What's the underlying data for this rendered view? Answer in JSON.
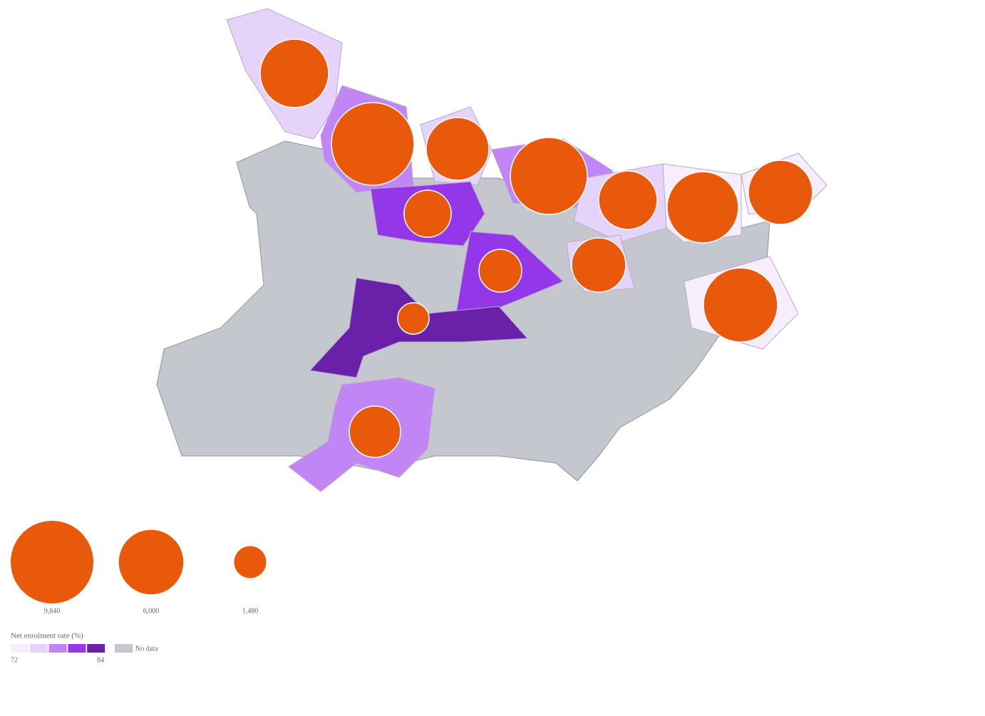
{
  "map_data": {
    "bubble_color": "#e8590c",
    "bubbles": [
      6740,
      9840,
      5660,
      8530,
      4920,
      7310,
      5920,
      3190,
      2630,
      4220,
      7910,
      1420,
      3790
    ],
    "districts": [
      75.5,
      78,
      75.5,
      78,
      75.5,
      73,
      73,
      80,
      80,
      75.5,
      73,
      83,
      78
    ],
    "size_legend": [
      {
        "value": 9840,
        "label": "9,840"
      },
      {
        "value": 6000,
        "label": "6,000"
      },
      {
        "value": 1480,
        "label": "1,480"
      }
    ],
    "color_legend": {
      "title": "Net enrolment rate (%)",
      "min": 72,
      "max": 84,
      "colors": [
        "#f6eefc",
        "#e5d3fa",
        "#c185f5",
        "#9437e8",
        "#6a20a8"
      ],
      "no_data_label": "No data",
      "no_data_color": "#c4c8ce"
    }
  }
}
